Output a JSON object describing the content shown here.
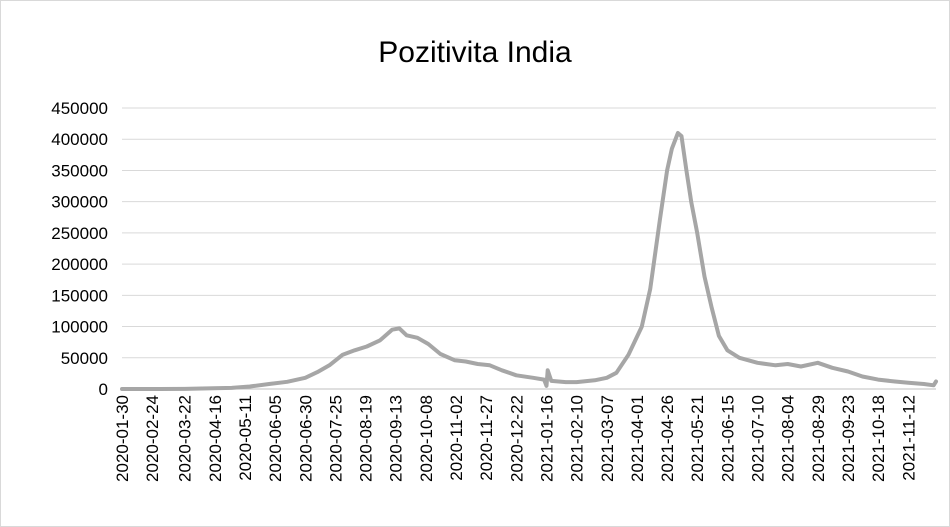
{
  "chart_data": {
    "type": "line",
    "title": "Pozitivita India",
    "xlabel": "",
    "ylabel": "",
    "ylim": [
      0,
      450000
    ],
    "y_ticks": [
      "0",
      "50000",
      "100000",
      "150000",
      "200000",
      "250000",
      "300000",
      "350000",
      "400000",
      "450000"
    ],
    "x_tick_labels": [
      "2020-01-30",
      "2020-02-24",
      "2020-03-22",
      "2020-04-16",
      "2020-05-11",
      "2020-06-05",
      "2020-06-30",
      "2020-07-25",
      "2020-08-19",
      "2020-09-13",
      "2020-10-08",
      "2020-11-02",
      "2020-11-27",
      "2020-12-22",
      "2021-01-16",
      "2021-02-10",
      "2021-03-07",
      "2021-04-01",
      "2021-04-26",
      "2021-05-21",
      "2021-06-15",
      "2021-07-10",
      "2021-08-04",
      "2021-08-29",
      "2021-09-23",
      "2021-10-18",
      "2021-11-12"
    ],
    "x_range": [
      "2020-01-30",
      "2021-12-05"
    ],
    "grid": "horizontal",
    "series_color": "#a6a6a6",
    "series": [
      {
        "points": [
          [
            "2020-01-30",
            0
          ],
          [
            "2020-03-01",
            50
          ],
          [
            "2020-03-22",
            100
          ],
          [
            "2020-04-10",
            900
          ],
          [
            "2020-04-30",
            1800
          ],
          [
            "2020-05-15",
            4000
          ],
          [
            "2020-05-31",
            8000
          ],
          [
            "2020-06-15",
            11500
          ],
          [
            "2020-06-30",
            18000
          ],
          [
            "2020-07-10",
            27000
          ],
          [
            "2020-07-20",
            38000
          ],
          [
            "2020-07-31",
            55000
          ],
          [
            "2020-08-10",
            62000
          ],
          [
            "2020-08-20",
            68000
          ],
          [
            "2020-08-31",
            78000
          ],
          [
            "2020-09-10",
            95000
          ],
          [
            "2020-09-16",
            97000
          ],
          [
            "2020-09-22",
            86000
          ],
          [
            "2020-10-01",
            82000
          ],
          [
            "2020-10-10",
            72000
          ],
          [
            "2020-10-20",
            56000
          ],
          [
            "2020-11-01",
            46000
          ],
          [
            "2020-11-10",
            44000
          ],
          [
            "2020-11-20",
            40000
          ],
          [
            "2020-11-30",
            38000
          ],
          [
            "2020-12-10",
            30000
          ],
          [
            "2020-12-22",
            22000
          ],
          [
            "2021-01-05",
            18000
          ],
          [
            "2021-01-14",
            15000
          ],
          [
            "2021-01-16",
            5000
          ],
          [
            "2021-01-17",
            30000
          ],
          [
            "2021-01-20",
            13000
          ],
          [
            "2021-02-01",
            11000
          ],
          [
            "2021-02-10",
            11000
          ],
          [
            "2021-02-25",
            14000
          ],
          [
            "2021-03-07",
            18000
          ],
          [
            "2021-03-15",
            26000
          ],
          [
            "2021-03-25",
            55000
          ],
          [
            "2021-04-05",
            100000
          ],
          [
            "2021-04-12",
            160000
          ],
          [
            "2021-04-20",
            270000
          ],
          [
            "2021-04-26",
            350000
          ],
          [
            "2021-04-30",
            385000
          ],
          [
            "2021-05-05",
            410000
          ],
          [
            "2021-05-08",
            405000
          ],
          [
            "2021-05-12",
            350000
          ],
          [
            "2021-05-16",
            300000
          ],
          [
            "2021-05-21",
            250000
          ],
          [
            "2021-05-27",
            180000
          ],
          [
            "2021-06-02",
            130000
          ],
          [
            "2021-06-08",
            85000
          ],
          [
            "2021-06-15",
            62000
          ],
          [
            "2021-06-25",
            50000
          ],
          [
            "2021-07-10",
            42000
          ],
          [
            "2021-07-25",
            38000
          ],
          [
            "2021-08-04",
            40000
          ],
          [
            "2021-08-15",
            36000
          ],
          [
            "2021-08-29",
            42000
          ],
          [
            "2021-09-10",
            34000
          ],
          [
            "2021-09-23",
            28000
          ],
          [
            "2021-10-05",
            20000
          ],
          [
            "2021-10-18",
            15000
          ],
          [
            "2021-11-01",
            12000
          ],
          [
            "2021-11-12",
            10000
          ],
          [
            "2021-11-25",
            8000
          ],
          [
            "2021-12-03",
            6000
          ],
          [
            "2021-12-05",
            12000
          ]
        ]
      }
    ]
  }
}
